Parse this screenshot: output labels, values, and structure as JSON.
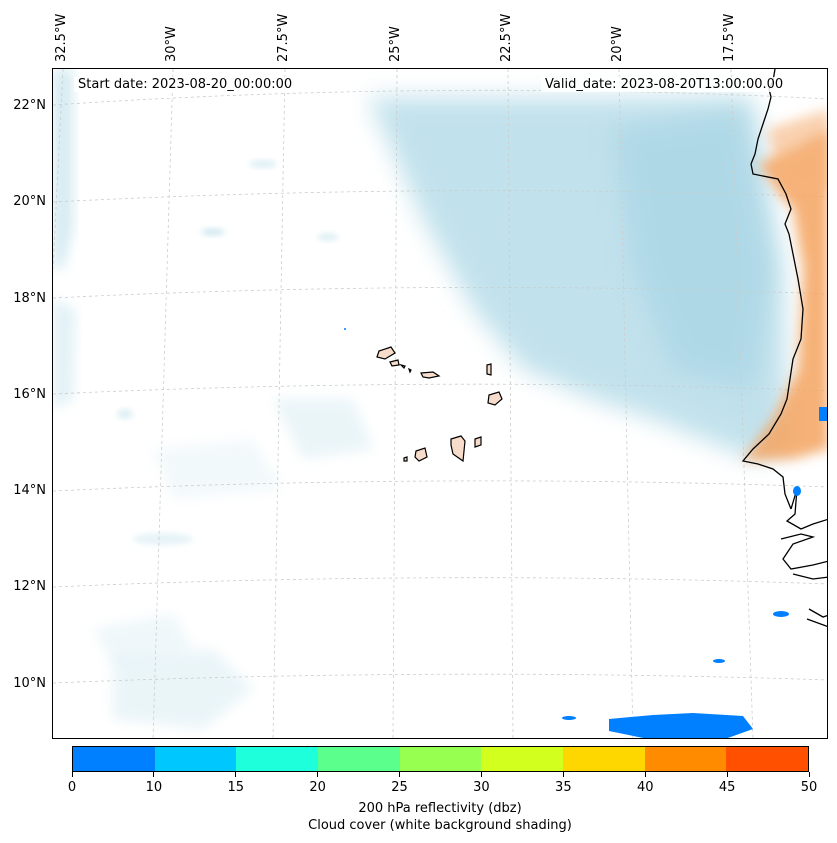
{
  "header": {
    "start_date": "Start date: 2023-08-20_00:00:00",
    "valid_date": "Valid_date: 2023-08-20T13:00:00.00"
  },
  "longitude_labels": [
    "32.5°W",
    "30°W",
    "27.5°W",
    "25°W",
    "22.5°W",
    "20°W",
    "17.5°W"
  ],
  "latitude_labels": [
    "22°N",
    "20°N",
    "18°N",
    "16°N",
    "14°N",
    "12°N",
    "10°N"
  ],
  "colorbar": {
    "colors": [
      "#0080ff",
      "#00c8ff",
      "#1effdc",
      "#5aff8c",
      "#96ff50",
      "#d2ff1e",
      "#ffd700",
      "#ff8c00",
      "#ff5000"
    ],
    "ticks": [
      "0",
      "10",
      "15",
      "20",
      "25",
      "30",
      "35",
      "40",
      "45",
      "50"
    ],
    "label_line1": "200 hPa reflectivity (dbz)",
    "label_line2": "Cloud cover (white background shading)"
  },
  "colors": {
    "cloud_shading": "#add8e6",
    "land_heat": "#f4a460",
    "reflectivity_low": "#0080ff",
    "gridline": "#cccccc"
  }
}
